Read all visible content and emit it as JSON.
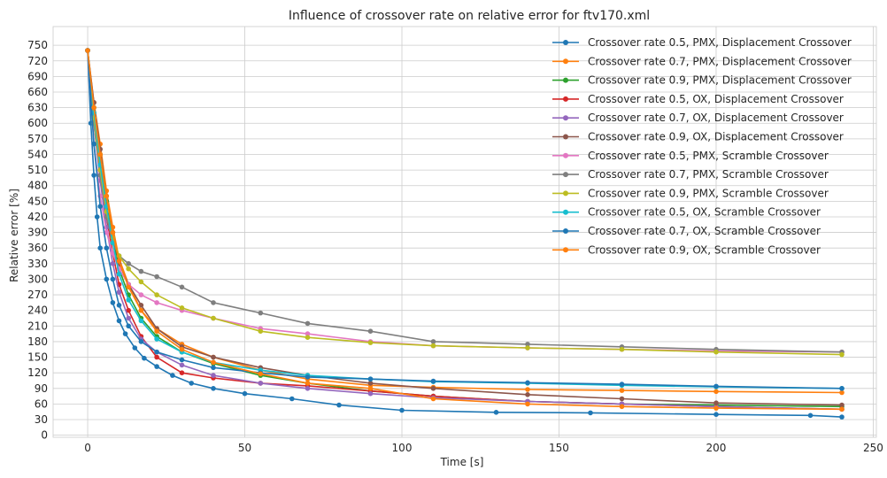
{
  "chart_data": {
    "type": "line",
    "title": "Influence of crossover rate on relative error for ftv170.xml",
    "xlabel": "Time [s]",
    "ylabel": "Relative error [%]",
    "xlim": [
      -11,
      251
    ],
    "ylim": [
      -4,
      786
    ],
    "xticks": [
      0,
      50,
      100,
      150,
      200,
      250
    ],
    "yticks": [
      0,
      30,
      60,
      90,
      120,
      150,
      180,
      210,
      240,
      270,
      300,
      330,
      360,
      390,
      420,
      450,
      480,
      510,
      540,
      570,
      600,
      630,
      660,
      690,
      720,
      750
    ],
    "grid": true,
    "legend_position": "top-right",
    "style": "whitegrid with markers",
    "series": [
      {
        "name": "Crossover rate 0.5, PMX, Displacement Crossover",
        "color": "#1f77b4",
        "x": [
          0,
          1,
          2,
          3,
          4,
          6,
          8,
          10,
          12,
          15,
          18,
          22,
          27,
          33,
          40,
          50,
          65,
          80,
          100,
          130,
          160,
          200,
          230,
          240
        ],
        "y": [
          740,
          600,
          500,
          420,
          360,
          300,
          255,
          220,
          195,
          168,
          148,
          132,
          115,
          100,
          90,
          80,
          70,
          58,
          48,
          44,
          43,
          40,
          38,
          35
        ]
      },
      {
        "name": "Crossover rate 0.7, PMX, Displacement Crossover",
        "color": "#ff7f0e",
        "x": [
          0,
          2,
          4,
          6,
          8,
          10,
          13,
          17,
          22,
          30,
          40,
          55,
          70,
          90,
          110,
          140,
          170,
          200,
          240
        ],
        "y": [
          740,
          640,
          560,
          470,
          400,
          340,
          290,
          240,
          205,
          175,
          150,
          125,
          108,
          96,
          92,
          88,
          86,
          84,
          82
        ]
      },
      {
        "name": "Crossover rate 0.9, PMX, Displacement Crossover",
        "color": "#2ca02c",
        "x": [
          0,
          2,
          4,
          6,
          8,
          10,
          13,
          17,
          22,
          30,
          40,
          55,
          70,
          90,
          110,
          140,
          170,
          200,
          240
        ],
        "y": [
          740,
          630,
          540,
          450,
          380,
          320,
          270,
          225,
          190,
          160,
          138,
          115,
          100,
          85,
          75,
          65,
          60,
          58,
          55
        ]
      },
      {
        "name": "Crossover rate 0.5, OX, Displacement Crossover",
        "color": "#d62728",
        "x": [
          0,
          2,
          4,
          6,
          8,
          10,
          13,
          17,
          22,
          30,
          40,
          55,
          70,
          90,
          110,
          140,
          170,
          200,
          240
        ],
        "y": [
          740,
          620,
          520,
          420,
          350,
          290,
          240,
          190,
          150,
          120,
          110,
          100,
          95,
          85,
          75,
          65,
          60,
          55,
          50
        ]
      },
      {
        "name": "Crossover rate 0.7, OX, Displacement Crossover",
        "color": "#9467bd",
        "x": [
          0,
          2,
          4,
          6,
          8,
          10,
          13,
          17,
          22,
          30,
          40,
          55,
          70,
          90,
          110,
          140,
          170,
          200,
          240
        ],
        "y": [
          740,
          600,
          490,
          400,
          330,
          275,
          225,
          185,
          160,
          135,
          115,
          100,
          90,
          80,
          72,
          65,
          60,
          55,
          50
        ]
      },
      {
        "name": "Crossover rate 0.9, OX, Displacement Crossover",
        "color": "#8c564b",
        "x": [
          0,
          2,
          4,
          6,
          8,
          10,
          13,
          17,
          22,
          30,
          40,
          55,
          70,
          90,
          110,
          140,
          170,
          200,
          240
        ],
        "y": [
          740,
          640,
          550,
          460,
          390,
          330,
          290,
          250,
          205,
          170,
          150,
          130,
          115,
          100,
          90,
          78,
          70,
          62,
          58
        ]
      },
      {
        "name": "Crossover rate 0.5, PMX, Scramble Crossover",
        "color": "#e377c2",
        "x": [
          0,
          2,
          4,
          6,
          8,
          10,
          13,
          17,
          22,
          30,
          40,
          55,
          70,
          90,
          110,
          140,
          170,
          200,
          240
        ],
        "y": [
          740,
          560,
          460,
          390,
          350,
          320,
          290,
          270,
          255,
          240,
          225,
          205,
          195,
          180,
          172,
          168,
          165,
          162,
          160
        ]
      },
      {
        "name": "Crossover rate 0.7, PMX, Scramble Crossover",
        "color": "#7f7f7f",
        "x": [
          0,
          2,
          4,
          6,
          8,
          10,
          13,
          17,
          22,
          30,
          40,
          55,
          70,
          90,
          110,
          140,
          170,
          200,
          240
        ],
        "y": [
          740,
          600,
          500,
          420,
          370,
          345,
          330,
          315,
          305,
          285,
          255,
          235,
          215,
          200,
          180,
          175,
          170,
          165,
          160
        ]
      },
      {
        "name": "Crossover rate 0.9, PMX, Scramble Crossover",
        "color": "#bcbd22",
        "x": [
          0,
          2,
          4,
          6,
          8,
          10,
          13,
          17,
          22,
          30,
          40,
          55,
          70,
          90,
          110,
          140,
          170,
          200,
          240
        ],
        "y": [
          740,
          610,
          510,
          430,
          380,
          345,
          320,
          295,
          270,
          245,
          225,
          200,
          188,
          178,
          172,
          168,
          165,
          160,
          155
        ]
      },
      {
        "name": "Crossover rate 0.5, OX, Scramble Crossover",
        "color": "#17becf",
        "x": [
          0,
          2,
          4,
          6,
          8,
          10,
          13,
          17,
          22,
          30,
          40,
          55,
          70,
          90,
          110,
          140,
          170,
          200,
          240
        ],
        "y": [
          740,
          620,
          520,
          440,
          370,
          310,
          260,
          220,
          185,
          160,
          140,
          125,
          115,
          108,
          103,
          100,
          96,
          93,
          90
        ]
      },
      {
        "name": "Crossover rate 0.7, OX, Scramble Crossover",
        "color": "#1f77b4",
        "x": [
          0,
          2,
          4,
          6,
          8,
          10,
          13,
          17,
          22,
          30,
          40,
          55,
          70,
          90,
          110,
          140,
          170,
          200,
          240
        ],
        "y": [
          740,
          560,
          440,
          360,
          300,
          250,
          210,
          180,
          160,
          145,
          130,
          120,
          112,
          108,
          104,
          101,
          98,
          94,
          90
        ]
      },
      {
        "name": "Crossover rate 0.9, OX, Scramble Crossover",
        "color": "#ff7f0e",
        "x": [
          0,
          2,
          4,
          6,
          8,
          10,
          13,
          17,
          22,
          30,
          40,
          55,
          70,
          90,
          110,
          140,
          170,
          200,
          240
        ],
        "y": [
          740,
          630,
          540,
          460,
          390,
          335,
          285,
          240,
          200,
          165,
          140,
          118,
          100,
          90,
          70,
          60,
          55,
          52,
          50
        ]
      }
    ]
  }
}
